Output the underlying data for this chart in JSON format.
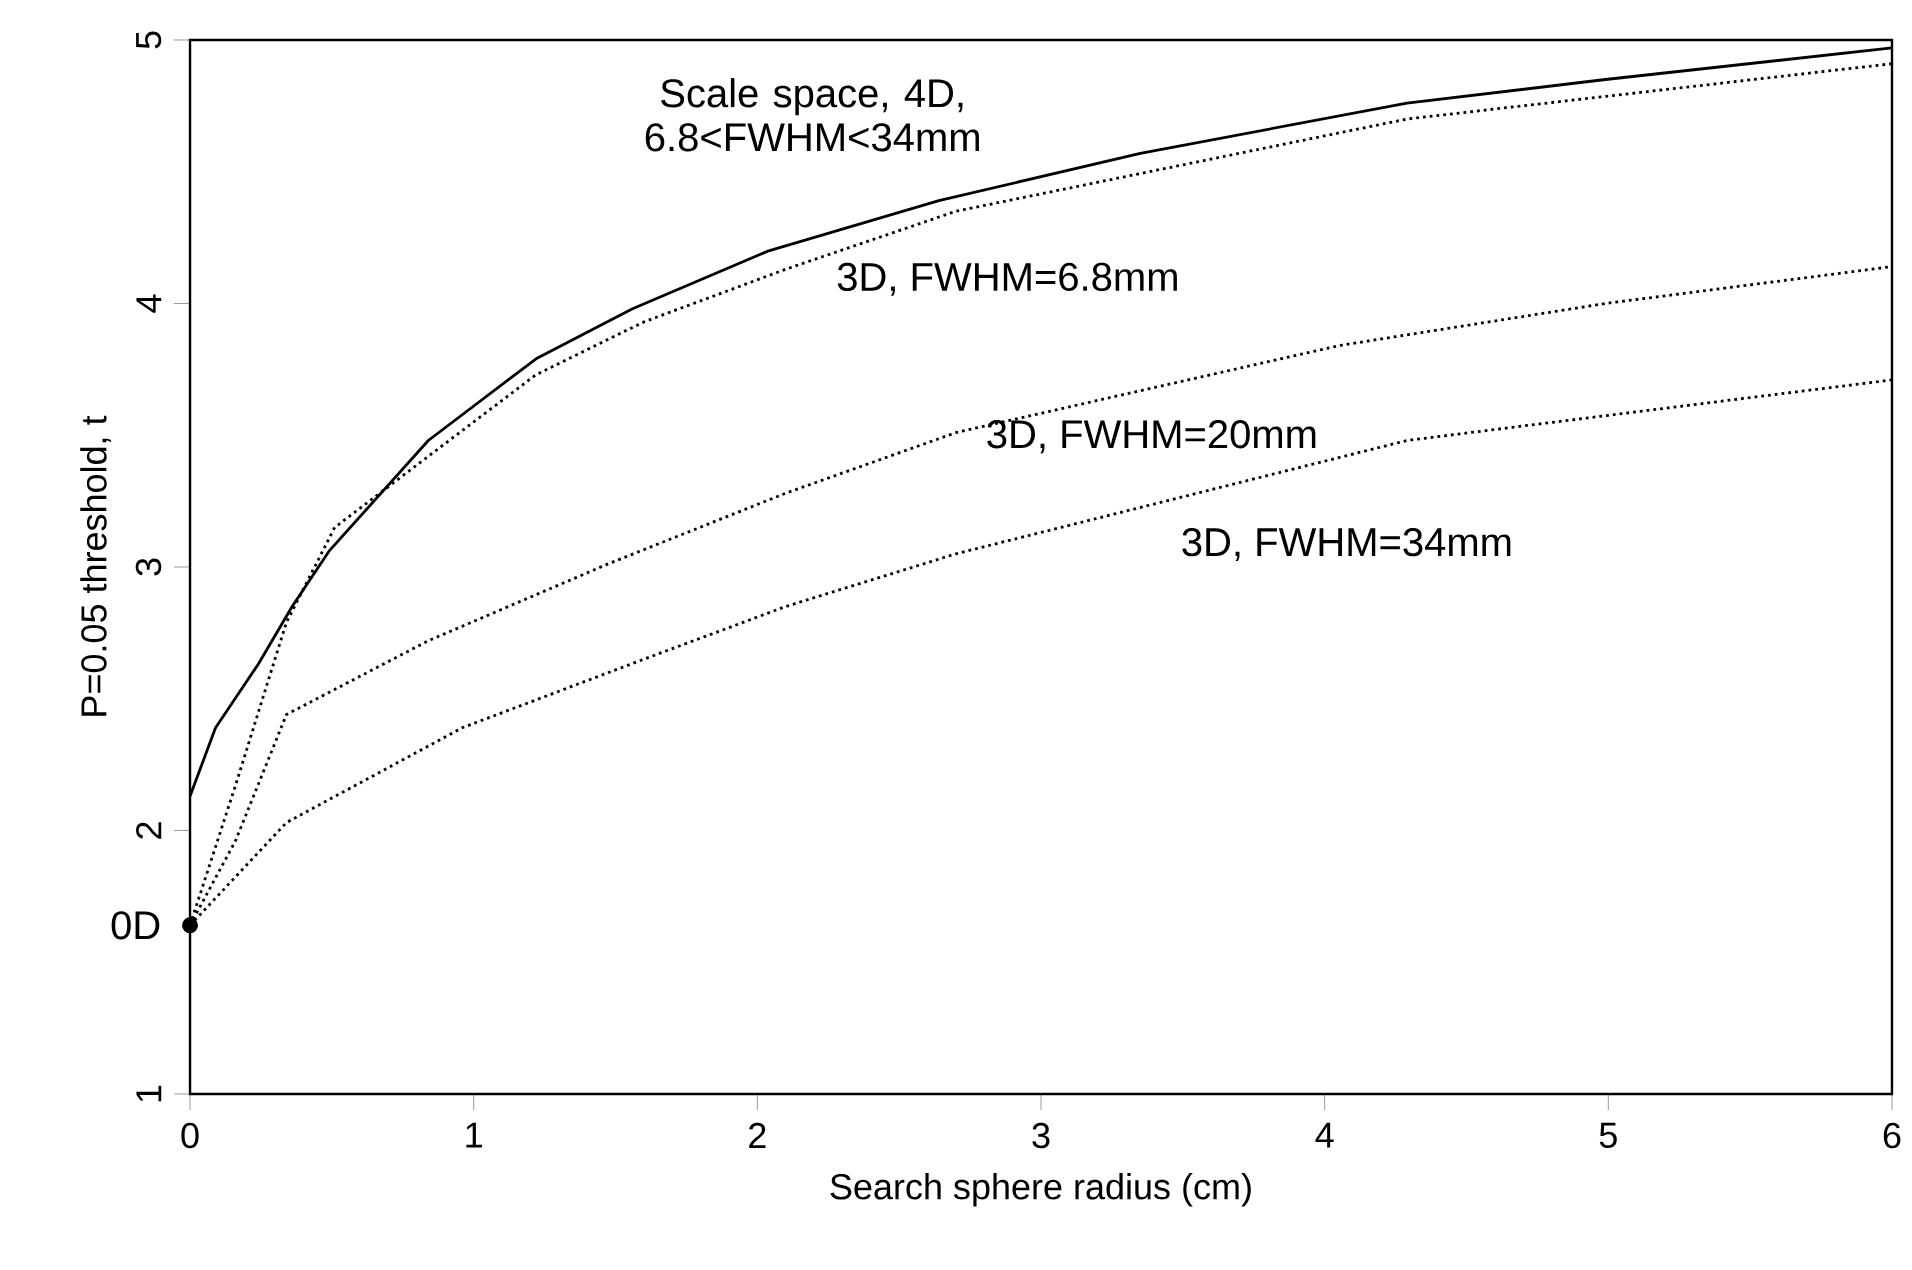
{
  "chart_data": {
    "type": "line",
    "xlabel": "Search sphere radius (cm)",
    "ylabel": "P=0.05 threshold, t",
    "xlim": [
      0,
      6
    ],
    "ylim": [
      1,
      5
    ],
    "xticks": [
      0,
      1,
      2,
      3,
      4,
      5,
      6
    ],
    "yticks": [
      1,
      2,
      3,
      4,
      5
    ],
    "grid": false,
    "marker": "none",
    "series": [
      {
        "name": "Scale space, 4D, 6.8<FWHM<34mm",
        "color": "#000000",
        "line_style": "solid",
        "x": [
          0,
          0.09,
          0.24,
          0.36,
          0.49,
          0.84,
          1.22,
          1.56,
          2.04,
          2.64,
          3.35,
          4.29,
          4.99,
          6.0
        ],
        "values": [
          2.13,
          2.39,
          2.63,
          2.85,
          3.06,
          3.48,
          3.79,
          3.98,
          4.2,
          4.39,
          4.57,
          4.76,
          4.85,
          4.97
        ]
      },
      {
        "name": "3D, FWHM=6.8mm",
        "color": "#000000",
        "line_style": "dotted",
        "x": [
          0,
          0.16,
          0.34,
          0.51,
          0.84,
          1.22,
          1.6,
          2.1,
          2.7,
          4.29,
          6.0
        ],
        "values": [
          1.64,
          2.17,
          2.79,
          3.15,
          3.42,
          3.73,
          3.93,
          4.13,
          4.35,
          4.7,
          4.91
        ]
      },
      {
        "name": "3D, FWHM=20mm",
        "color": "#000000",
        "line_style": "dotted",
        "x": [
          0,
          0.16,
          0.34,
          0.84,
          1.47,
          2.1,
          2.7,
          4.05,
          4.99,
          6.0
        ],
        "values": [
          1.64,
          1.96,
          2.44,
          2.72,
          3.01,
          3.28,
          3.51,
          3.84,
          4.0,
          4.14
        ]
      },
      {
        "name": "3D, FWHM=34mm",
        "color": "#000000",
        "line_style": "dotted",
        "x": [
          0,
          0.34,
          0.96,
          1.6,
          2.1,
          2.7,
          4.29,
          6.0
        ],
        "values": [
          1.64,
          2.03,
          2.39,
          2.65,
          2.85,
          3.05,
          3.48,
          3.71
        ]
      },
      {
        "type": "scatter",
        "marker": "circle",
        "color": "#000000",
        "x": [
          0
        ],
        "values": [
          1.64
        ]
      }
    ],
    "annotations": [
      {
        "text": "0D",
        "x": 0,
        "y": 1.64
      }
    ]
  }
}
